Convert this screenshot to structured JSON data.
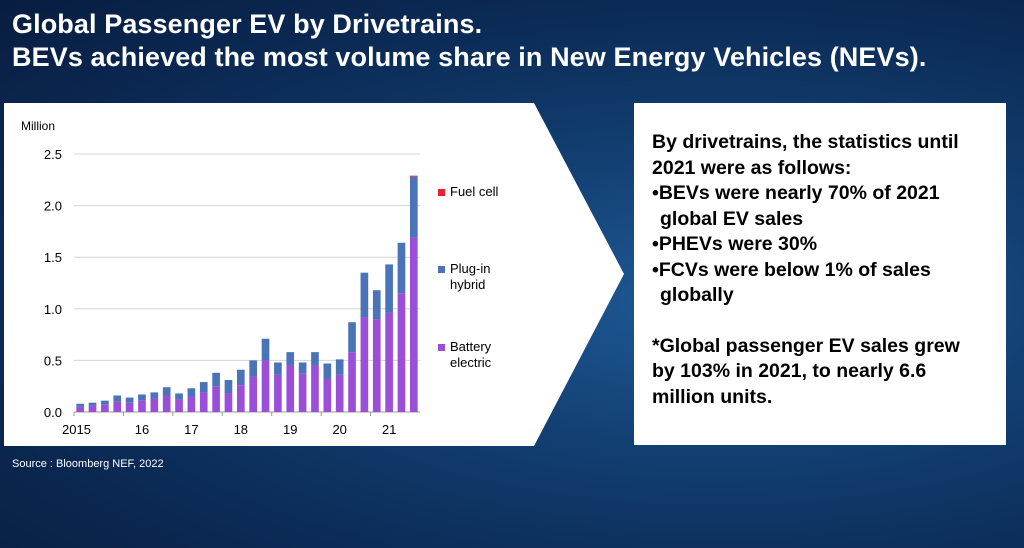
{
  "title": {
    "line1": "Global Passenger EV by Drivetrains.",
    "line2": "BEVs achieved the most volume share in New Energy Vehicles (NEVs)."
  },
  "source": "Source : Bloomberg NEF, 2022",
  "text_box": {
    "intro_line1": "By drivetrains, the statistics until",
    "intro_line2": "2021 were as follows:",
    "bullet1_line1": "•BEVs were nearly 70% of 2021",
    "bullet1_line2": "global EV sales",
    "bullet2": "•PHEVs were 30%",
    "bullet3_line1": "•FCVs were below 1% of sales",
    "bullet3_line2": "globally",
    "note_line1": "*Global passenger EV sales grew",
    "note_line2": "by 103% in 2021, to nearly 6.6",
    "note_line3": "million units."
  },
  "colors": {
    "battery_electric": "#9b4fd8",
    "plug_in_hybrid": "#4a73b8",
    "fuel_cell": "#e8232a",
    "gridline": "#d4d4d4"
  },
  "chart_data": {
    "type": "bar",
    "stacked": true,
    "ylabel": "Million",
    "ylim": [
      0,
      2.5
    ],
    "yticks": [
      "0.0",
      "0.5",
      "1.0",
      "1.5",
      "2.0",
      "2.5"
    ],
    "xtick_labels": [
      {
        "label": "2015",
        "index": 0
      },
      {
        "label": "16",
        "index": 4
      },
      {
        "label": "17",
        "index": 8
      },
      {
        "label": "18",
        "index": 12
      },
      {
        "label": "19",
        "index": 16
      },
      {
        "label": "20",
        "index": 20
      },
      {
        "label": "21",
        "index": 24
      }
    ],
    "categories": [
      "2015 Q1",
      "2015 Q2",
      "2015 Q3",
      "2015 Q4",
      "2016 Q1",
      "2016 Q2",
      "2016 Q3",
      "2016 Q4",
      "2017 Q1",
      "2017 Q2",
      "2017 Q3",
      "2017 Q4",
      "2018 Q1",
      "2018 Q2",
      "2018 Q3",
      "2018 Q4",
      "2019 Q1",
      "2019 Q2",
      "2019 Q3",
      "2019 Q4",
      "2020 Q1",
      "2020 Q2",
      "2020 Q3",
      "2020 Q4",
      "2021 Q1",
      "2021 Q2",
      "2021 Q3",
      "2021 Q4"
    ],
    "grid": true,
    "legend_position": "right",
    "series": [
      {
        "name": "Battery electric",
        "values": [
          0.05,
          0.06,
          0.07,
          0.1,
          0.09,
          0.11,
          0.13,
          0.16,
          0.12,
          0.15,
          0.19,
          0.25,
          0.18,
          0.26,
          0.34,
          0.5,
          0.36,
          0.45,
          0.37,
          0.45,
          0.32,
          0.36,
          0.58,
          0.92,
          0.9,
          0.96,
          1.15,
          1.69
        ]
      },
      {
        "name": "Plug-in hybrid",
        "values": [
          0.03,
          0.03,
          0.04,
          0.06,
          0.05,
          0.06,
          0.06,
          0.08,
          0.06,
          0.08,
          0.1,
          0.13,
          0.13,
          0.15,
          0.16,
          0.21,
          0.12,
          0.13,
          0.11,
          0.13,
          0.15,
          0.15,
          0.29,
          0.43,
          0.28,
          0.47,
          0.49,
          0.59
        ]
      },
      {
        "name": "Fuel cell",
        "values": [
          0,
          0,
          0,
          0,
          0,
          0,
          0,
          0,
          0,
          0,
          0,
          0,
          0,
          0,
          0,
          0,
          0,
          0,
          0,
          0,
          0,
          0,
          0,
          0,
          0,
          0,
          0,
          0.01
        ]
      }
    ]
  }
}
